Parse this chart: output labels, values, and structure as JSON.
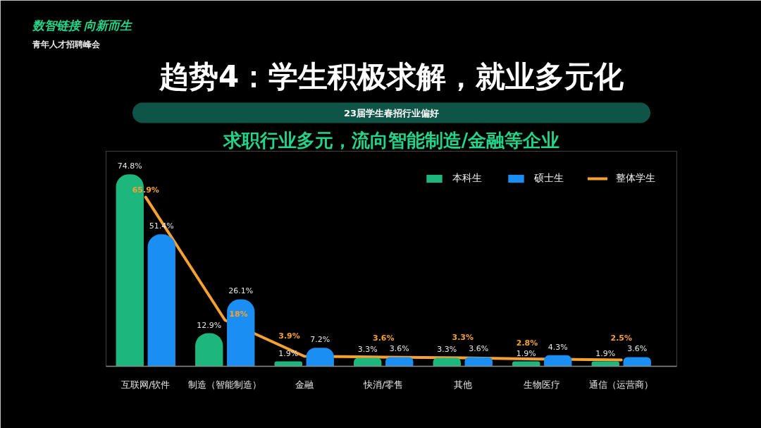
{
  "chart_data": {
    "type": "bar",
    "title": "趋势4：学生积极求解，就业多元化",
    "subtitle": "23届学生春招行业偏好",
    "annotations": [
      "数智链接 向新而生",
      "青年人才招聘峰会",
      "求职行业多元，流向智能制造/金融等企业"
    ],
    "categories": [
      "互联网/软件",
      "制造（智能制造）",
      "金融",
      "快消/零售",
      "其他",
      "生物医疗",
      "通信（运营商）"
    ],
    "series": [
      {
        "name": "本科生",
        "color": "#1db67c",
        "values": [
          74.8,
          12.9,
          1.9,
          3.3,
          3.3,
          1.9,
          1.9
        ],
        "value_labels": [
          "74.8%",
          "12.9%",
          "1.9%",
          "3.3%",
          "3.3%",
          "1.9%",
          "1.9%"
        ]
      },
      {
        "name": "硕士生",
        "color": "#1a8ef2",
        "values": [
          51.4,
          26.1,
          7.2,
          3.6,
          3.6,
          4.3,
          3.6
        ],
        "value_labels": [
          "51.4%",
          "26.1%",
          "7.2%",
          "3.6%",
          "3.6%",
          "4.3%",
          "3.6%"
        ]
      },
      {
        "name": "整体学生",
        "type": "line",
        "color": "#f5a233",
        "values": [
          65.9,
          18,
          3.9,
          3.6,
          3.3,
          2.8,
          2.5
        ],
        "value_labels": [
          "65.9%",
          "18%",
          "3.9%",
          "3.6%",
          "3.3%",
          "2.8%",
          "2.5%"
        ]
      }
    ],
    "legend": "top right",
    "tick_labels": "x",
    "line_style": "solid"
  }
}
